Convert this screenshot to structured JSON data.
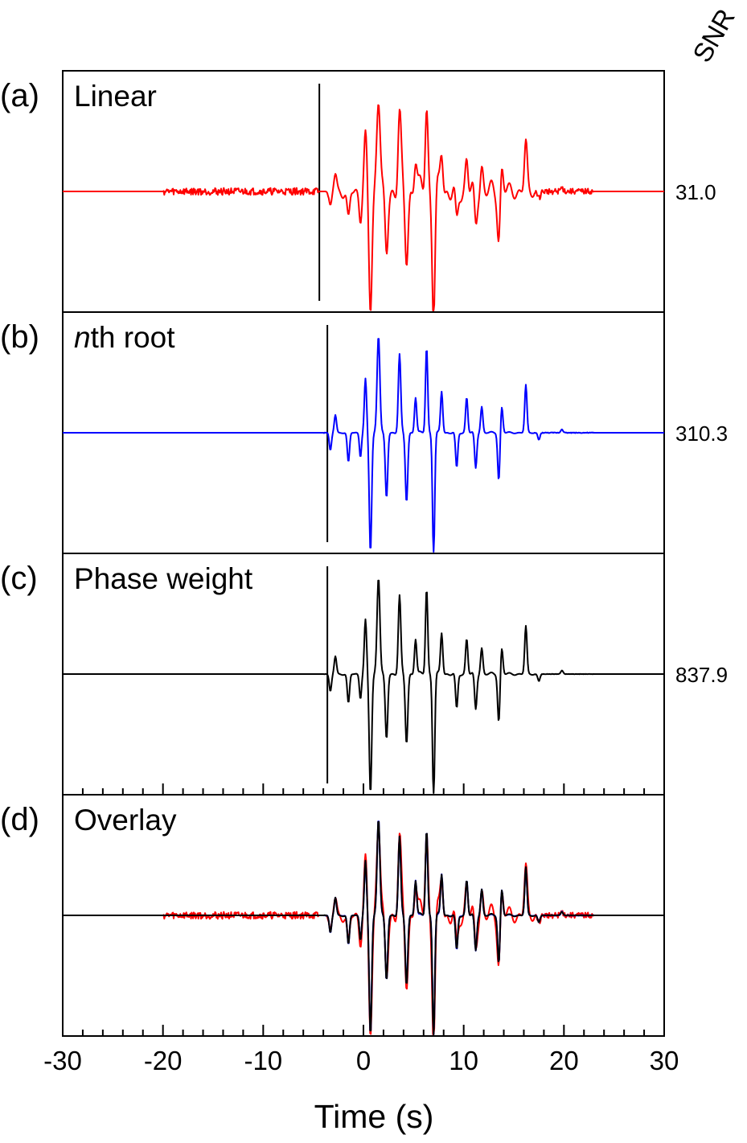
{
  "chart_data": {
    "type": "line",
    "xlabel": "Time (s)",
    "xlim": [
      -30,
      30
    ],
    "x_ticks": [
      -30,
      -20,
      -10,
      0,
      10,
      20,
      30
    ],
    "x_tick_labels": [
      "-30",
      "-20",
      "-10",
      "0",
      "10",
      "20",
      "30"
    ],
    "snr_header": "SNR",
    "colors": {
      "linear": "#ff0000",
      "nth_root": "#0000ff",
      "phase_weight": "#000000"
    },
    "events": [
      {
        "t": 0.7,
        "amp": -1.0,
        "w": 0.22
      },
      {
        "t": 1.5,
        "amp": 0.82,
        "w": 0.25
      },
      {
        "t": 2.3,
        "amp": -0.55,
        "w": 0.22
      },
      {
        "t": 0.2,
        "amp": 0.45,
        "w": 0.2
      },
      {
        "t": -0.3,
        "amp": -0.2,
        "w": 0.18
      },
      {
        "t": 3.6,
        "amp": 0.66,
        "w": 0.22
      },
      {
        "t": 4.3,
        "amp": -0.58,
        "w": 0.22
      },
      {
        "t": 5.2,
        "amp": 0.3,
        "w": 0.2
      },
      {
        "t": 6.3,
        "amp": 0.72,
        "w": 0.2
      },
      {
        "t": 7.0,
        "amp": -1.03,
        "w": 0.2
      },
      {
        "t": 7.8,
        "amp": 0.35,
        "w": 0.2
      },
      {
        "t": 9.3,
        "amp": -0.3,
        "w": 0.2
      },
      {
        "t": 10.3,
        "amp": 0.3,
        "w": 0.2
      },
      {
        "t": 11.2,
        "amp": -0.3,
        "w": 0.2
      },
      {
        "t": 11.8,
        "amp": 0.22,
        "w": 0.2
      },
      {
        "t": 13.5,
        "amp": -0.4,
        "w": 0.2
      },
      {
        "t": 13.8,
        "amp": 0.22,
        "w": 0.2
      },
      {
        "t": 16.2,
        "amp": 0.4,
        "w": 0.2
      },
      {
        "t": -2.8,
        "amp": 0.15,
        "w": 0.2
      },
      {
        "t": -3.3,
        "amp": -0.15,
        "w": 0.2
      },
      {
        "t": -1.5,
        "amp": -0.25,
        "w": 0.2
      },
      {
        "t": 17.5,
        "amp": -0.06,
        "w": 0.2
      },
      {
        "t": 19.8,
        "amp": 0.03,
        "w": 0.2
      }
    ],
    "panels": [
      {
        "letter": "(a)",
        "title": "Linear",
        "title_italic": "",
        "snr": "31.0",
        "series": [
          {
            "key": "linear",
            "color": "#ff0000",
            "noise": 0.03,
            "osc": 0.55,
            "sharp": 1.0,
            "pre_noise_from": -20,
            "pre_noise_to": -4.5
          }
        ],
        "marker_t": -4.4
      },
      {
        "letter": "(b)",
        "title": "th root",
        "title_italic": "n",
        "snr": "310.3",
        "series": [
          {
            "key": "nth_root",
            "color": "#0000ff",
            "noise": 0.004,
            "osc": 0.05,
            "sharp": 0.45,
            "pre_noise_from": -4,
            "pre_noise_to": -3.5
          }
        ],
        "marker_t": -3.6
      },
      {
        "letter": "(c)",
        "title": "Phase weight",
        "title_italic": "",
        "snr": "837.9",
        "series": [
          {
            "key": "phase_weight",
            "color": "#000000",
            "noise": 0.002,
            "osc": 0.08,
            "sharp": 0.5,
            "pre_noise_from": -4,
            "pre_noise_to": -3.5
          }
        ],
        "marker_t": -3.6
      },
      {
        "letter": "(d)",
        "title": "Overlay",
        "title_italic": "",
        "snr": "",
        "series": [
          {
            "key": "linear",
            "color": "#ff0000",
            "noise": 0.03,
            "osc": 0.55,
            "sharp": 1.0,
            "pre_noise_from": -20,
            "pre_noise_to": -4.5
          },
          {
            "key": "nth_root",
            "color": "#0000ff",
            "noise": 0.004,
            "osc": 0.05,
            "sharp": 0.45,
            "pre_noise_from": -4,
            "pre_noise_to": -3.5
          },
          {
            "key": "phase_weight",
            "color": "#000000",
            "noise": 0.002,
            "osc": 0.08,
            "sharp": 0.5,
            "pre_noise_from": -4,
            "pre_noise_to": -3.5
          }
        ],
        "marker_t": null
      }
    ]
  }
}
